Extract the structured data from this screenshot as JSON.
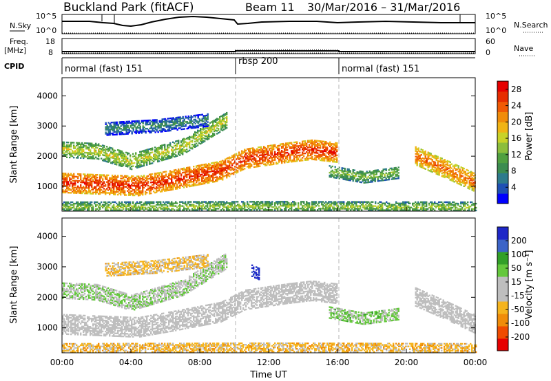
{
  "header": {
    "site": "Buckland Park (fitACF)",
    "beam": "Beam 11",
    "dates": "30/Mar/2016 – 31/Mar/2016"
  },
  "strips": {
    "nsky": {
      "label": "N.Sky",
      "ticks": [
        "10^5",
        "10^0"
      ],
      "right_ticks": [
        "10^5",
        "10^0"
      ],
      "right_label": "N.Search"
    },
    "freq": {
      "label_line1": "Freq.",
      "label_line2": "[MHz]",
      "ticks": [
        "18",
        "8"
      ],
      "right_ticks": [
        "60",
        "0"
      ],
      "right_label": "Nave"
    },
    "cpid": {
      "label": "CPID",
      "segments": [
        "normal (fast) 151",
        "rbsp 200",
        "normal (fast) 151"
      ]
    }
  },
  "chart_data": [
    {
      "type": "heatmap",
      "panel": "power",
      "ylabel": "Slant Range [km]",
      "yticks": [
        "1000",
        "2000",
        "3000",
        "4000"
      ],
      "ylim": [
        180,
        4600
      ],
      "xlim_hours": [
        0,
        24
      ],
      "xticks": [
        "00:00",
        "04:00",
        "08:00",
        "12:00",
        "16:00",
        "20:00",
        "00:00"
      ],
      "colorbar": {
        "label": "Power [dB]",
        "ticks": [
          "4",
          "8",
          "12",
          "16",
          "20",
          "24",
          "28"
        ],
        "range": [
          0,
          30
        ],
        "colors": [
          "#0000ff",
          "#1e50b4",
          "#2d7a8c",
          "#3c8c50",
          "#50a040",
          "#8cbe3c",
          "#c8d228",
          "#f0b414",
          "#f08c0a",
          "#f05a05",
          "#e62d00",
          "#e60000"
        ]
      },
      "bands": [
        {
          "t": [
            0,
            4.4,
            6.4,
            9.2,
            10.6,
            13.0,
            14.5,
            16.0
          ],
          "r": [
            1100,
            1000,
            1200,
            1500,
            1900,
            2100,
            2200,
            2100
          ],
          "w": 320,
          "v": 27
        },
        {
          "t": [
            0,
            2.0,
            4.0,
            7.0,
            9.6
          ],
          "r": [
            2200,
            2150,
            1800,
            2300,
            3200
          ],
          "w": 250,
          "v": 17
        },
        {
          "t": [
            2.5,
            5.5,
            8.5
          ],
          "r": [
            2900,
            3000,
            3200
          ],
          "w": 220,
          "v": 9
        },
        {
          "t": [
            15.5,
            17.5,
            19.5
          ],
          "r": [
            1500,
            1300,
            1450
          ],
          "w": 200,
          "v": 14
        },
        {
          "t": [
            20.5,
            22.5,
            24.0
          ],
          "r": [
            2000,
            1500,
            1100
          ],
          "w": 300,
          "v": 24
        },
        {
          "t": [
            0,
            12.0,
            24.0
          ],
          "r": [
            300,
            320,
            300
          ],
          "w": 160,
          "v": 15
        }
      ]
    },
    {
      "type": "heatmap",
      "panel": "velocity",
      "ylabel": "Slant Range [km]",
      "yticks": [
        "1000",
        "2000",
        "3000",
        "4000"
      ],
      "ylim": [
        180,
        4600
      ],
      "xlim_hours": [
        0,
        24
      ],
      "xticks": [
        "00:00",
        "04:00",
        "08:00",
        "12:00",
        "16:00",
        "20:00",
        "00:00"
      ],
      "xlabel": "Time UT",
      "colorbar": {
        "label": "Velocity [m s⁻¹]",
        "ticks": [
          "200",
          "100",
          "50",
          "15",
          "-15",
          "-50",
          "-100",
          "-200"
        ],
        "range": [
          -250,
          250
        ],
        "colors": [
          "#e60000",
          "#f04b00",
          "#f08c0a",
          "#f5b41e",
          "#bebebe",
          "#bebebe",
          "#64c83c",
          "#32a028",
          "#3c64c8",
          "#1e28c8"
        ]
      },
      "bands": [
        {
          "t": [
            0,
            4.4,
            6.4,
            9.2,
            10.6,
            13.0,
            14.5,
            16.0
          ],
          "r": [
            1100,
            1000,
            1200,
            1500,
            1900,
            2100,
            2200,
            2100
          ],
          "w": 320,
          "v": 0
        },
        {
          "t": [
            0,
            2.0,
            4.0,
            7.0,
            9.6
          ],
          "r": [
            2200,
            2150,
            1800,
            2300,
            3200
          ],
          "w": 250,
          "v": 40
        },
        {
          "t": [
            2.5,
            5.5,
            8.5
          ],
          "r": [
            2900,
            3000,
            3200
          ],
          "w": 220,
          "v": -60
        },
        {
          "t": [
            15.5,
            17.5,
            19.5
          ],
          "r": [
            1500,
            1300,
            1450
          ],
          "w": 200,
          "v": 60
        },
        {
          "t": [
            20.5,
            22.5,
            24.0
          ],
          "r": [
            2000,
            1500,
            1100
          ],
          "w": 300,
          "v": 0
        },
        {
          "t": [
            0,
            12.0,
            24.0
          ],
          "r": [
            300,
            320,
            300
          ],
          "w": 160,
          "v": -70
        },
        {
          "t": [
            11.0,
            11.4
          ],
          "r": [
            2850,
            2750
          ],
          "w": 180,
          "v": 230
        }
      ]
    }
  ],
  "markers": {
    "dashed_lines_hours": [
      10,
      16
    ]
  }
}
